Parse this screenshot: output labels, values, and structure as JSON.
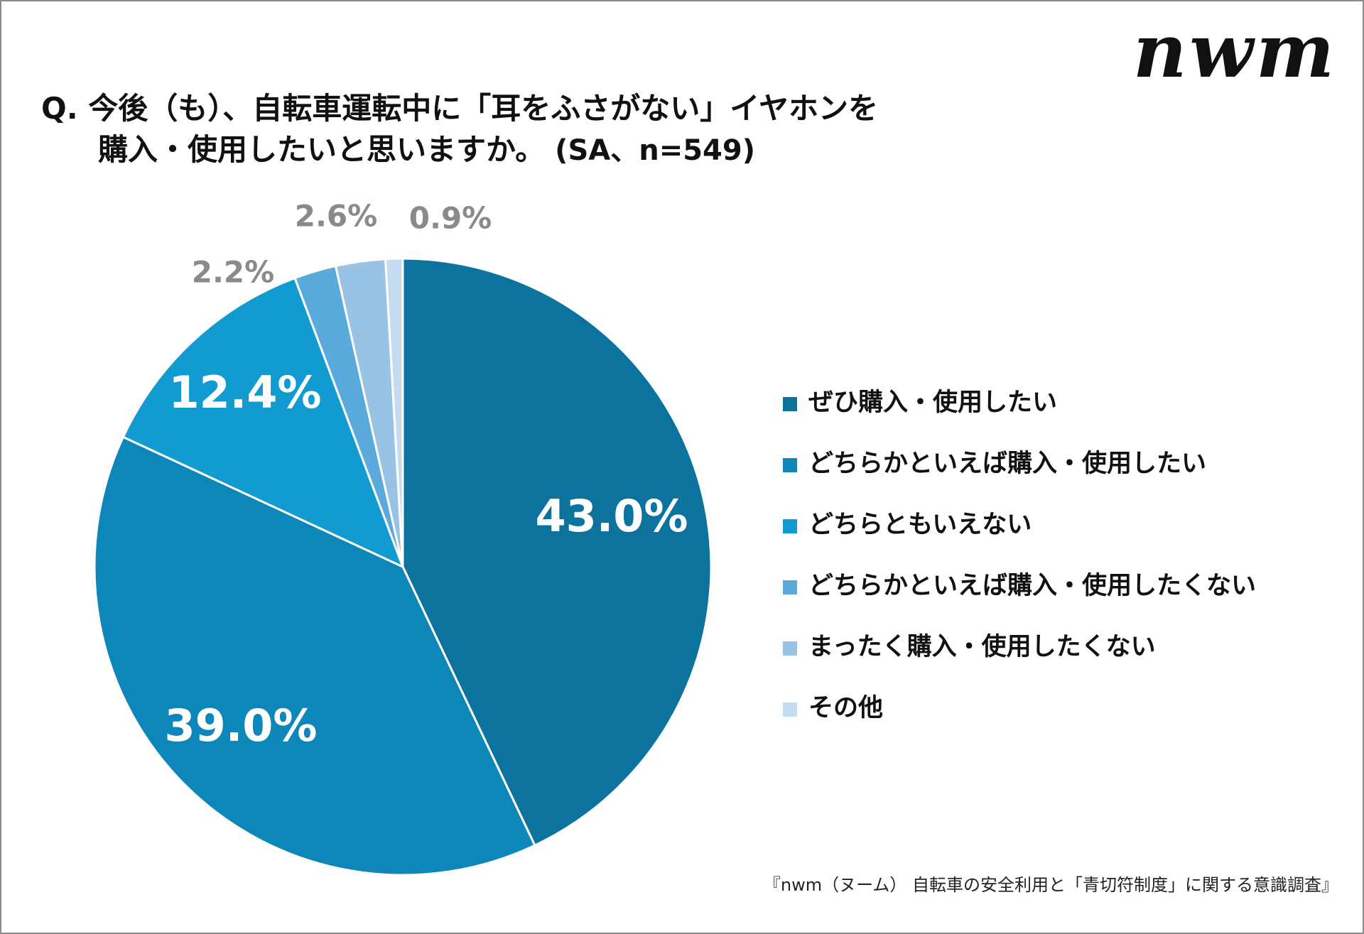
{
  "logo": "nwm",
  "title": {
    "line1": "Q. 今後（も）、自転車運転中に「耳をふさがない」イヤホンを",
    "line2": "購入・使用したいと思いますか。",
    "sample": "(SA、n=549)"
  },
  "footer": "『nwm（ヌーム） 自転車の安全利用と「青切符制度」に関する意識調査』",
  "chart_data": {
    "type": "pie",
    "categories": [
      "ぜひ購入・使用したい",
      "どちらかといえば購入・使用したい",
      "どちらともいえない",
      "どちらかといえば購入・使用したくない",
      "まったく購入・使用したくない",
      "その他"
    ],
    "values": [
      43.0,
      39.0,
      12.4,
      2.2,
      2.6,
      0.9
    ],
    "labels": [
      "43.0%",
      "39.0%",
      "12.4%",
      "2.2%",
      "2.6%",
      "0.9%"
    ],
    "colors": [
      "#0b739d",
      "#0d87b9",
      "#129bd0",
      "#5aaadb",
      "#99c3e5",
      "#c5dbf0"
    ],
    "start": "12 o'clock, clockwise",
    "legend_position": "right"
  }
}
